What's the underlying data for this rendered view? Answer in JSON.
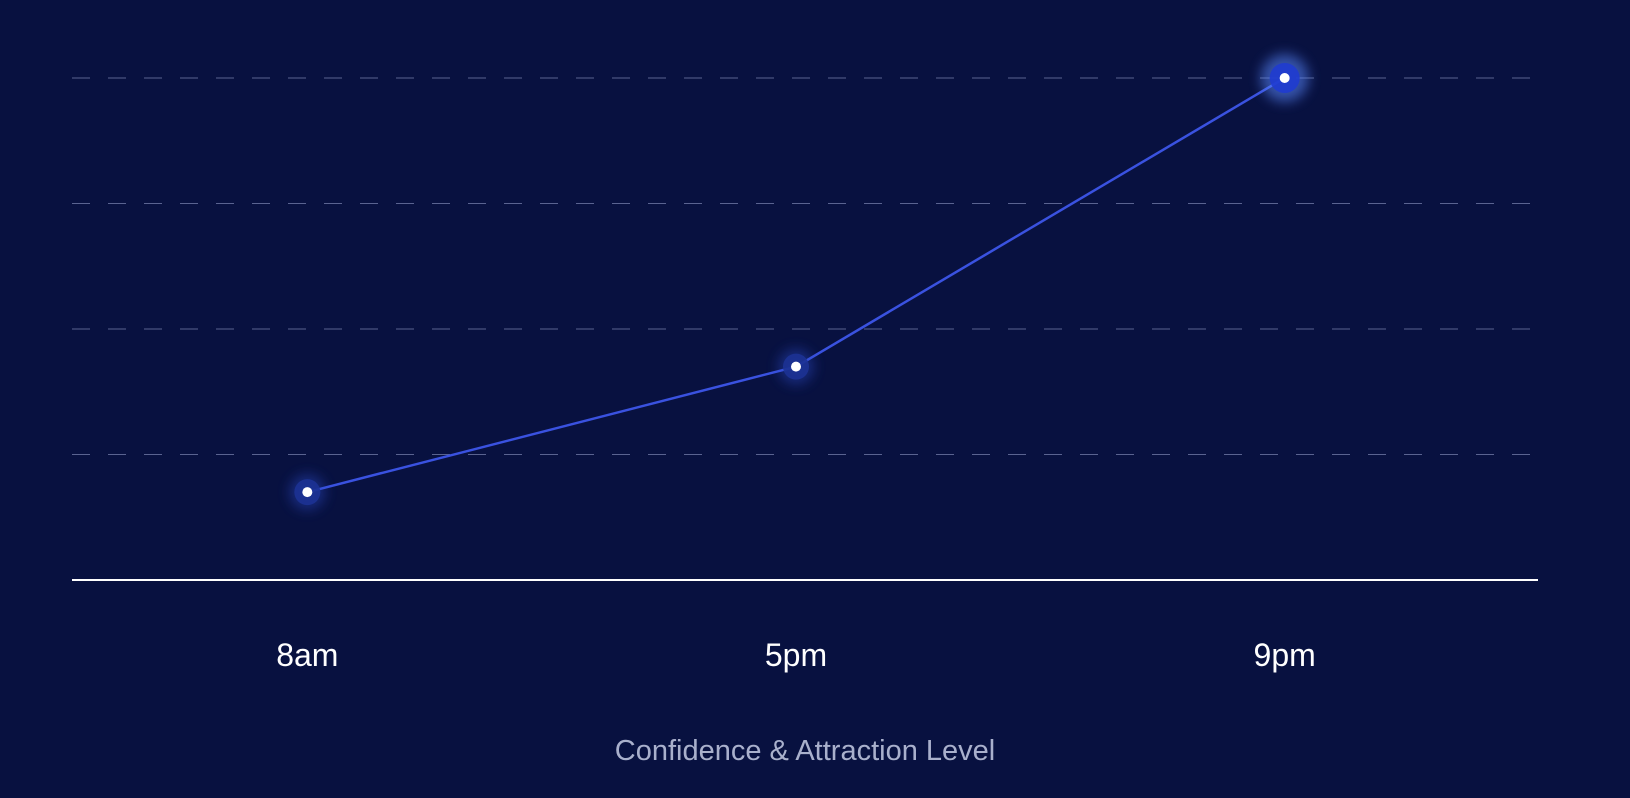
{
  "chart_data": {
    "type": "line",
    "categories": [
      "8am",
      "5pm",
      "9pm"
    ],
    "series": [
      {
        "values": [
          0.7,
          1.7,
          4.0
        ]
      }
    ],
    "title": "",
    "xlabel": "Confidence & Attraction Level",
    "ylabel": "",
    "ylim": [
      0,
      4
    ],
    "yticks": [
      1,
      2,
      3,
      4
    ],
    "y_tick_labels_shown": false,
    "grid": "horizontal-dashed",
    "legend": "none",
    "colors": {
      "background": "#081140",
      "line": "#3a52e0",
      "point_fill": "#ffffff",
      "point_halo": "#2a48c4",
      "grid": "#5a6390",
      "axis": "#ffffff"
    }
  }
}
